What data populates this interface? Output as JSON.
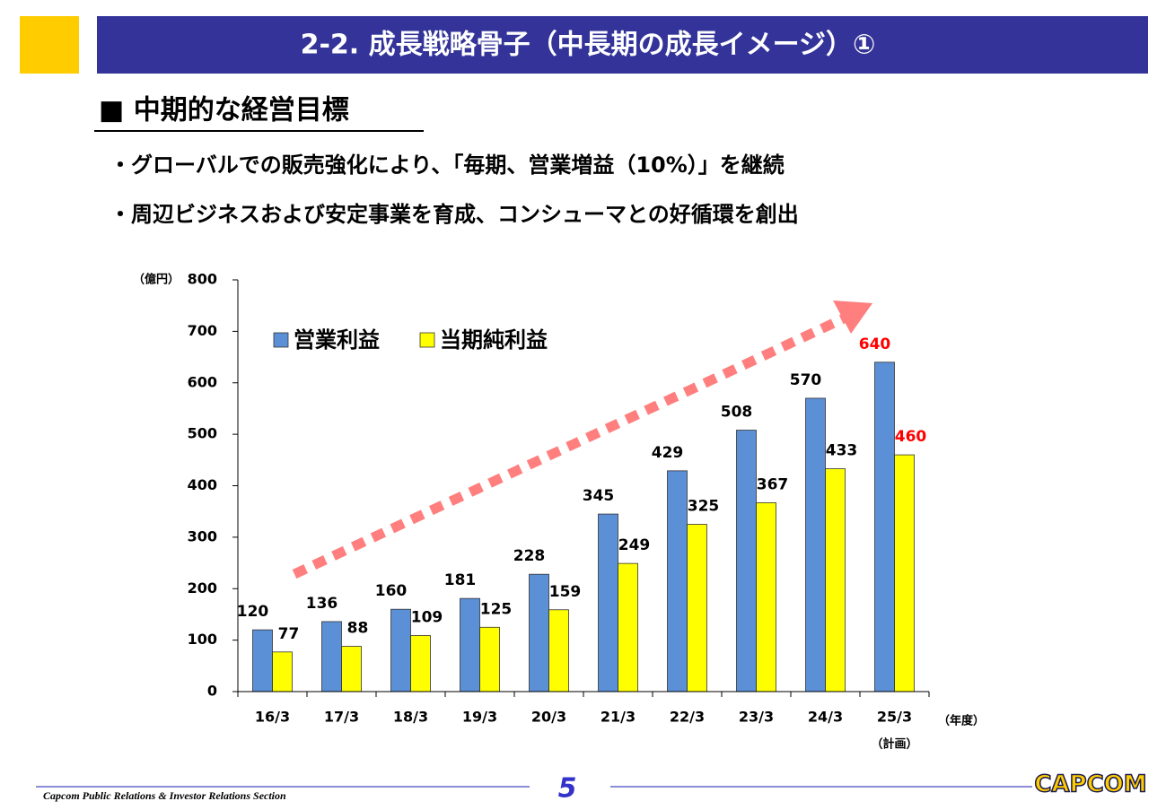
{
  "header": {
    "title": "2-2.  成長戦略骨子（中長期の成長イメージ）①"
  },
  "section": {
    "heading": "■  中期的な経営目標",
    "bullets": [
      "・グローバルでの販売強化により、「毎期、営業増益（10%）」を継続",
      "・周辺ビジネスおよび安定事業を育成、コンシューマとの好循環を創出"
    ]
  },
  "chart_data": {
    "type": "bar",
    "y_unit_label": "（億円）",
    "x_unit_label": "（年度）",
    "x_note": "（計画）",
    "categories": [
      "16/3",
      "17/3",
      "18/3",
      "19/3",
      "20/3",
      "21/3",
      "22/3",
      "23/3",
      "24/3",
      "25/3"
    ],
    "series": [
      {
        "name": "営業利益",
        "color": "#5b8fd6",
        "values": [
          120,
          136,
          160,
          181,
          228,
          345,
          429,
          508,
          570,
          640
        ]
      },
      {
        "name": "当期純利益",
        "color": "#ffff00",
        "values": [
          77,
          88,
          109,
          125,
          159,
          249,
          325,
          367,
          433,
          460
        ]
      }
    ],
    "ylim": [
      0,
      800
    ],
    "yticks": [
      0,
      100,
      200,
      300,
      400,
      500,
      600,
      700,
      800
    ],
    "grid": false,
    "label_color": "#000000",
    "plan_label_color": "#ff0000"
  },
  "footer": {
    "section": "Capcom Public Relations & Investor Relations Section",
    "page": "5",
    "logo": "CAPCOM"
  }
}
